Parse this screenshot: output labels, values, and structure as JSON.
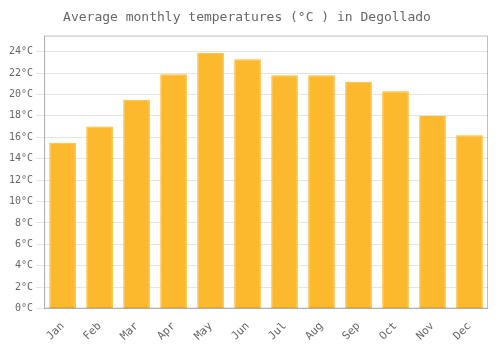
{
  "chart_data": {
    "type": "bar",
    "title": "Average monthly temperatures (°C ) in Degollado",
    "categories": [
      "Jan",
      "Feb",
      "Mar",
      "Apr",
      "May",
      "Jun",
      "Jul",
      "Aug",
      "Sep",
      "Oct",
      "Nov",
      "Dec"
    ],
    "values": [
      15.5,
      17.0,
      19.5,
      21.9,
      23.9,
      23.3,
      21.8,
      21.8,
      21.2,
      20.3,
      18.0,
      16.2
    ],
    "color": "#FDB92E",
    "ylim": [
      0,
      25.5
    ],
    "yticks": [
      {
        "value": 0,
        "label": "0°C"
      },
      {
        "value": 2,
        "label": "2°C"
      },
      {
        "value": 4,
        "label": "4°C"
      },
      {
        "value": 6,
        "label": "6°C"
      },
      {
        "value": 8,
        "label": "8°C"
      },
      {
        "value": 10,
        "label": "10°C"
      },
      {
        "value": 12,
        "label": "12°C"
      },
      {
        "value": 14,
        "label": "14°C"
      },
      {
        "value": 16,
        "label": "16°C"
      },
      {
        "value": 18,
        "label": "18°C"
      },
      {
        "value": 20,
        "label": "20°C"
      },
      {
        "value": 22,
        "label": "22°C"
      },
      {
        "value": 24,
        "label": "24°C"
      }
    ],
    "grid": true
  }
}
